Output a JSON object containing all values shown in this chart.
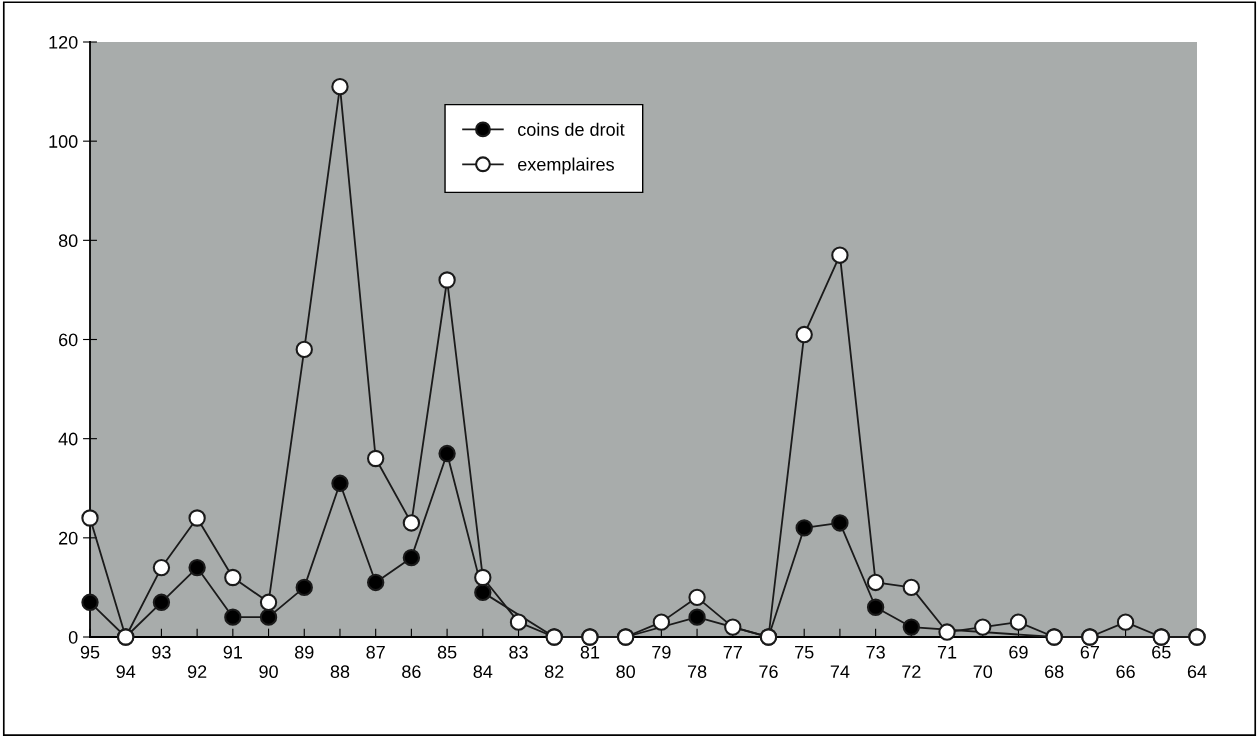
{
  "chart_data": {
    "type": "line",
    "categories": [
      "95",
      "94",
      "93",
      "92",
      "91",
      "90",
      "89",
      "88",
      "87",
      "86",
      "85",
      "84",
      "83",
      "82",
      "81",
      "80",
      "79",
      "78",
      "77",
      "76",
      "75",
      "74",
      "73",
      "72",
      "71",
      "70",
      "69",
      "68",
      "67",
      "66",
      "65",
      "64"
    ],
    "series": [
      {
        "name": "coins de droit",
        "color": "#000000",
        "marker": "circle",
        "values": [
          7,
          0,
          7,
          14,
          4,
          4,
          10,
          31,
          11,
          16,
          37,
          9,
          null,
          0,
          0,
          0,
          null,
          4,
          null,
          0,
          22,
          23,
          6,
          2,
          null,
          null,
          null,
          0,
          0,
          null,
          0,
          0
        ]
      },
      {
        "name": "exemplaires",
        "color": "#ffffff",
        "marker": "circle",
        "values": [
          24,
          0,
          14,
          24,
          12,
          7,
          58,
          111,
          36,
          23,
          72,
          12,
          3,
          0,
          0,
          0,
          3,
          8,
          2,
          0,
          61,
          77,
          11,
          10,
          1,
          2,
          3,
          0,
          0,
          3,
          0,
          0
        ]
      }
    ],
    "ylim": [
      0,
      120
    ],
    "yticks": [
      0,
      20,
      40,
      60,
      80,
      100,
      120
    ],
    "grid": false,
    "legend": "top",
    "line_style": "solid"
  }
}
